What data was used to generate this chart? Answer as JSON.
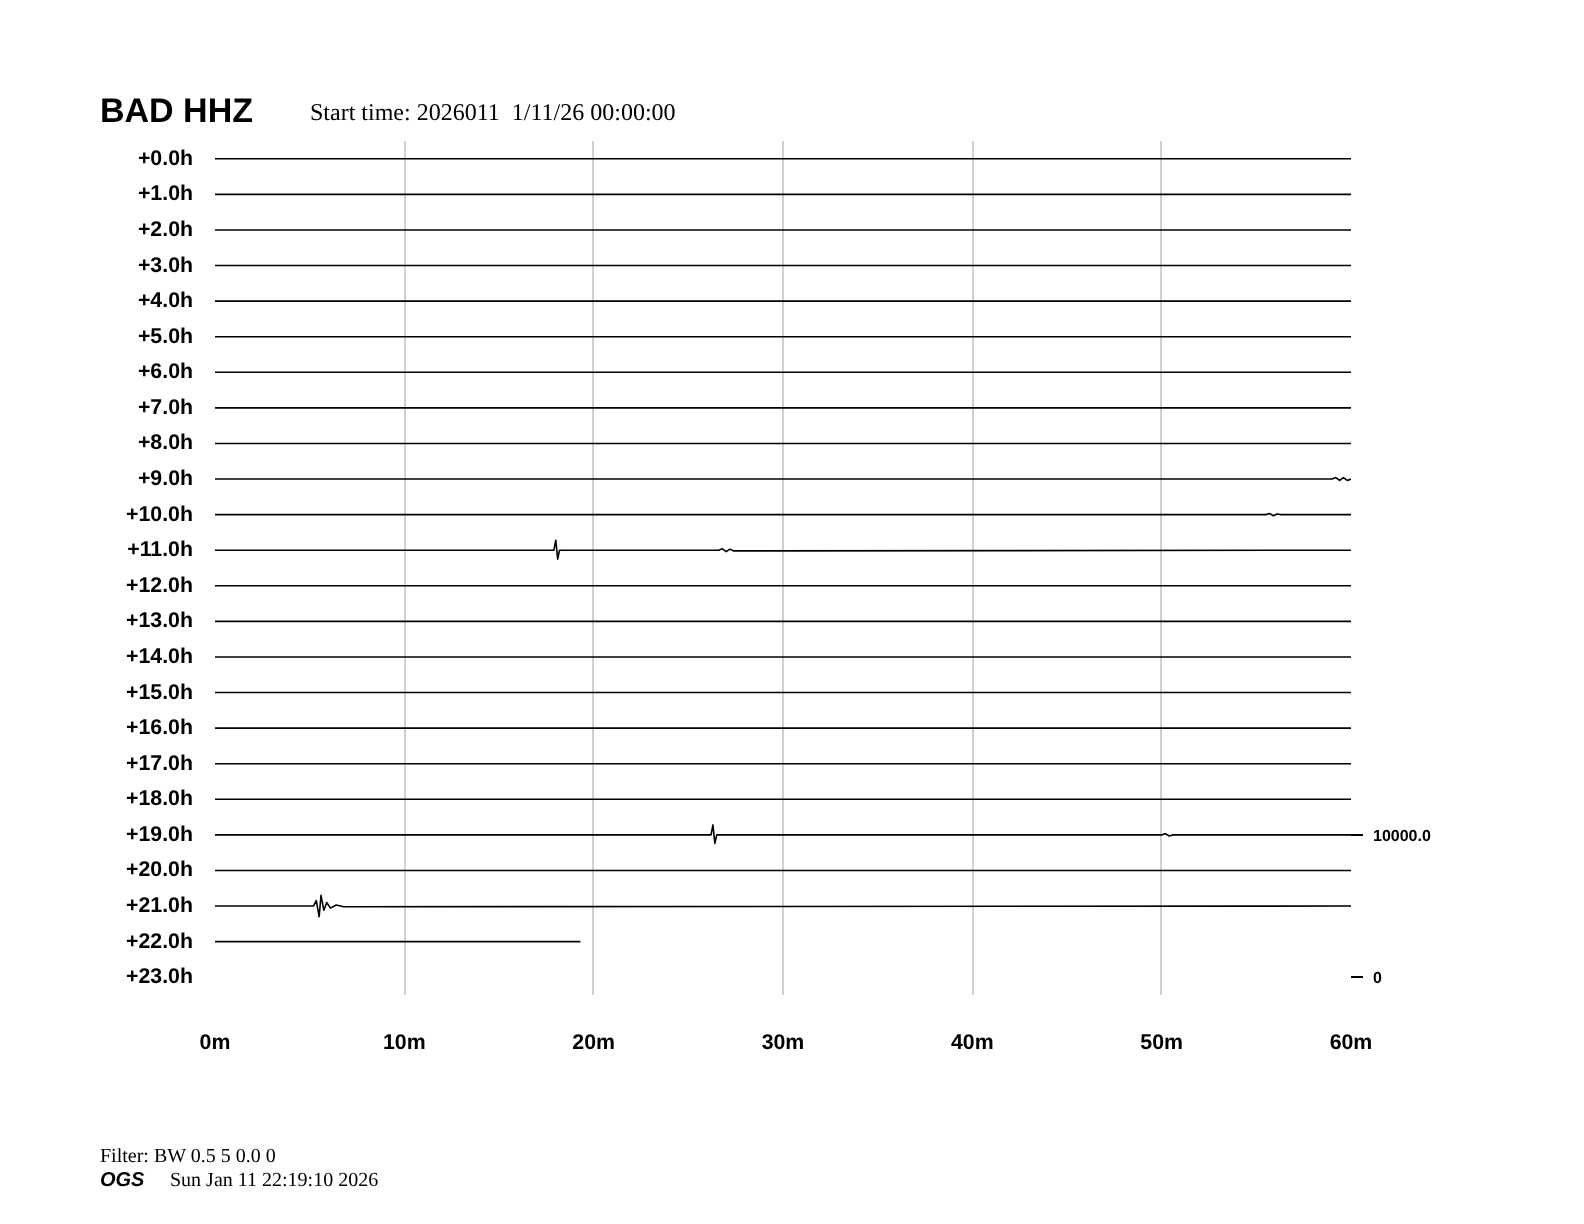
{
  "chart_data": {
    "type": "line",
    "title": "BAD HHZ",
    "subtitle": "Start time: 2026011  1/11/26 00:00:00",
    "annotations": [
      "Filter: BW 0.5 5 0.0 0",
      "OGS",
      "Sun Jan 11 22:19:10 2026"
    ],
    "xlim": [
      0,
      60
    ],
    "xticks": [
      {
        "value": 0,
        "label": "0m"
      },
      {
        "value": 10,
        "label": "10m"
      },
      {
        "value": 20,
        "label": "20m"
      },
      {
        "value": 30,
        "label": "30m"
      },
      {
        "value": 40,
        "label": "40m"
      },
      {
        "value": 50,
        "label": "50m"
      },
      {
        "value": 60,
        "label": "60m"
      }
    ],
    "ylim": [
      23.5,
      -0.5
    ],
    "yticks": [
      {
        "value": 0,
        "label": "+0.0h"
      },
      {
        "value": 1,
        "label": "+1.0h"
      },
      {
        "value": 2,
        "label": "+2.0h"
      },
      {
        "value": 3,
        "label": "+3.0h"
      },
      {
        "value": 4,
        "label": "+4.0h"
      },
      {
        "value": 5,
        "label": "+5.0h"
      },
      {
        "value": 6,
        "label": "+6.0h"
      },
      {
        "value": 7,
        "label": "+7.0h"
      },
      {
        "value": 8,
        "label": "+8.0h"
      },
      {
        "value": 9,
        "label": "+9.0h"
      },
      {
        "value": 10,
        "label": "+10.0h"
      },
      {
        "value": 11,
        "label": "+11.0h"
      },
      {
        "value": 12,
        "label": "+12.0h"
      },
      {
        "value": 13,
        "label": "+13.0h"
      },
      {
        "value": 14,
        "label": "+14.0h"
      },
      {
        "value": 15,
        "label": "+15.0h"
      },
      {
        "value": 16,
        "label": "+16.0h"
      },
      {
        "value": 17,
        "label": "+17.0h"
      },
      {
        "value": 18,
        "label": "+18.0h"
      },
      {
        "value": 19,
        "label": "+19.0h"
      },
      {
        "value": 20,
        "label": "+20.0h"
      },
      {
        "value": 21,
        "label": "+21.0h"
      },
      {
        "value": 22,
        "label": "+22.0h"
      },
      {
        "value": 23,
        "label": "+23.0h"
      }
    ],
    "y2lim": [
      -1250,
      58750
    ],
    "y2ticks": [
      {
        "value": 0,
        "label": "0"
      },
      {
        "value": 10000,
        "label": "10000.0"
      }
    ],
    "grid": "x",
    "series": [
      {
        "color": "#000000",
        "x": [
          0,
          60
        ],
        "values": [
          0,
          0
        ]
      },
      {
        "color": "#000000",
        "x": [
          0,
          60
        ],
        "values": [
          1,
          1
        ]
      },
      {
        "color": "#000000",
        "x": [
          0,
          60
        ],
        "values": [
          2,
          2
        ]
      },
      {
        "color": "#000000",
        "x": [
          0,
          60
        ],
        "values": [
          3,
          3
        ]
      },
      {
        "color": "#000000",
        "x": [
          0,
          60
        ],
        "values": [
          4,
          4
        ]
      },
      {
        "color": "#000000",
        "x": [
          0,
          60
        ],
        "values": [
          5,
          5
        ]
      },
      {
        "color": "#000000",
        "x": [
          0,
          60
        ],
        "values": [
          6,
          6
        ]
      },
      {
        "color": "#000000",
        "x": [
          0,
          60
        ],
        "values": [
          7,
          7
        ]
      },
      {
        "color": "#000000",
        "x": [
          0,
          60
        ],
        "values": [
          8,
          8
        ]
      },
      {
        "color": "#000000",
        "x": [
          0,
          59.0,
          59.2,
          59.4,
          59.6,
          59.8,
          60
        ],
        "values": [
          9,
          9,
          8.96,
          9.04,
          8.96,
          9.04,
          9
        ]
      },
      {
        "color": "#000000",
        "x": [
          0,
          55.5,
          55.7,
          55.9,
          56.1,
          56.3,
          60
        ],
        "values": [
          10,
          10,
          9.97,
          10.03,
          9.98,
          10,
          10
        ]
      },
      {
        "color": "#000000",
        "x": [
          0,
          17.9,
          18.0,
          18.1,
          18.2,
          26.6,
          26.8,
          27.0,
          27.2,
          27.4,
          60
        ],
        "values": [
          11,
          11,
          10.72,
          11.25,
          11,
          11,
          10.96,
          11.04,
          10.97,
          11.02,
          11
        ]
      },
      {
        "color": "#000000",
        "x": [
          0,
          60
        ],
        "values": [
          12,
          12
        ]
      },
      {
        "color": "#000000",
        "x": [
          0,
          60
        ],
        "values": [
          13,
          13
        ]
      },
      {
        "color": "#000000",
        "x": [
          0,
          60
        ],
        "values": [
          14,
          14
        ]
      },
      {
        "color": "#000000",
        "x": [
          0,
          60
        ],
        "values": [
          15,
          15
        ]
      },
      {
        "color": "#000000",
        "x": [
          0,
          60
        ],
        "values": [
          16,
          16
        ]
      },
      {
        "color": "#000000",
        "x": [
          0,
          60
        ],
        "values": [
          17,
          17
        ]
      },
      {
        "color": "#000000",
        "x": [
          0,
          60
        ],
        "values": [
          18,
          18
        ]
      },
      {
        "color": "#000000",
        "x": [
          0,
          26.2,
          26.3,
          26.4,
          26.5,
          50.0,
          50.2,
          50.4,
          50.6,
          60
        ],
        "values": [
          19,
          19,
          18.72,
          19.24,
          19,
          19,
          18.97,
          19.03,
          19,
          19
        ]
      },
      {
        "color": "#000000",
        "x": [
          0,
          60
        ],
        "values": [
          20,
          20
        ]
      },
      {
        "color": "#000000",
        "x": [
          0,
          5.2,
          5.35,
          5.5,
          5.6,
          5.75,
          5.9,
          6.1,
          6.4,
          6.8,
          60
        ],
        "values": [
          21,
          21,
          20.85,
          21.3,
          20.7,
          21.12,
          20.9,
          21.06,
          20.97,
          21.02,
          21
        ]
      },
      {
        "color": "#000000",
        "x": [
          0,
          19.3
        ],
        "values": [
          22,
          22
        ]
      }
    ]
  }
}
